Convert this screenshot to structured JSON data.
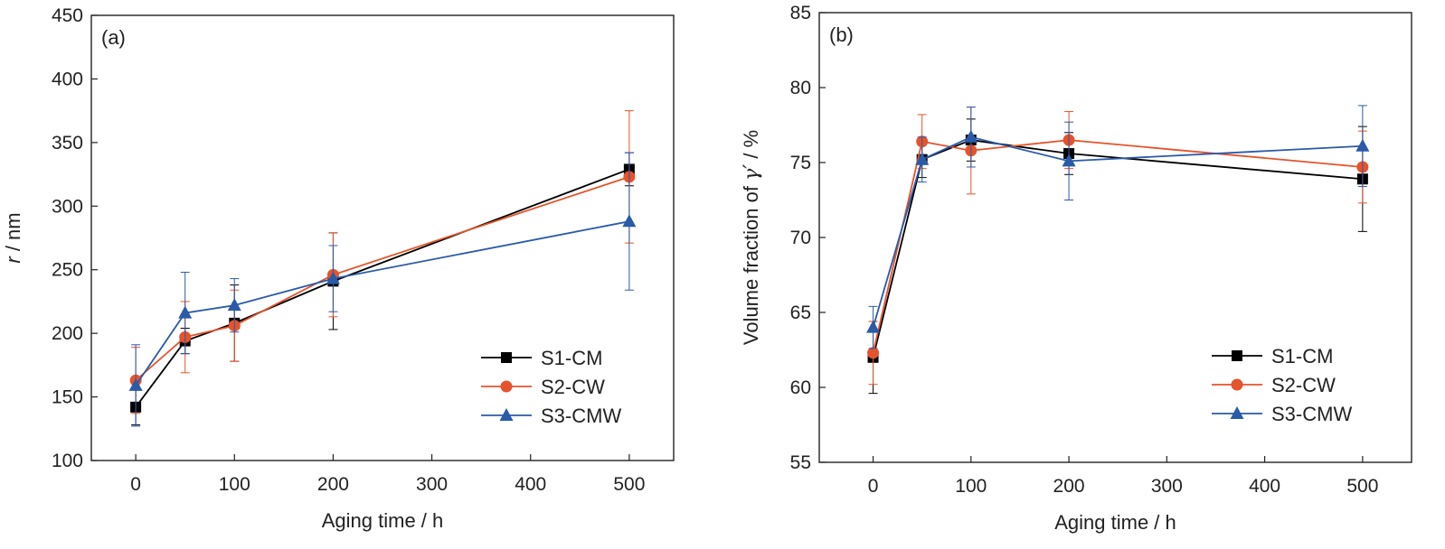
{
  "chart_data": [
    {
      "type": "line",
      "panel_label": "(a)",
      "xlabel": "Aging time / h",
      "ylabel_italic": "r",
      "ylabel_rest": " / nm",
      "xlim": [
        -45,
        545
      ],
      "ylim": [
        100,
        450
      ],
      "xticks": [
        0,
        100,
        200,
        300,
        400,
        500
      ],
      "yticks": [
        100,
        150,
        200,
        250,
        300,
        350,
        400,
        450
      ],
      "x": [
        0,
        50,
        100,
        200,
        500
      ],
      "legend_position": "bottom-right",
      "series": [
        {
          "name": "S1-CM",
          "color": "#000000",
          "marker": "square",
          "values": [
            142,
            194,
            208,
            241,
            329
          ],
          "errors": [
            14,
            10,
            30,
            38,
            13
          ]
        },
        {
          "name": "S2-CW",
          "color": "#e5532c",
          "marker": "circle",
          "values": [
            163,
            197,
            206,
            246,
            323
          ],
          "errors": [
            26,
            28,
            28,
            33,
            52
          ]
        },
        {
          "name": "S3-CMW",
          "color": "#2a5aa8",
          "marker": "triangle",
          "values": [
            159,
            216,
            222,
            243,
            288
          ],
          "errors": [
            32,
            32,
            21,
            26,
            54
          ]
        }
      ]
    },
    {
      "type": "line",
      "panel_label": "(b)",
      "xlabel": "Aging time / h",
      "ylabel_prefix": "Volume fraction of ",
      "ylabel_symbol": "γ′",
      "ylabel_suffix": " / %",
      "xlim": [
        -55,
        550
      ],
      "ylim": [
        55,
        85
      ],
      "xticks": [
        0,
        100,
        200,
        300,
        400,
        500
      ],
      "yticks": [
        55,
        60,
        65,
        70,
        75,
        80,
        85
      ],
      "x": [
        0,
        50,
        100,
        200,
        500
      ],
      "legend_position": "bottom-right",
      "series": [
        {
          "name": "S1-CM",
          "color": "#000000",
          "marker": "square",
          "values": [
            62.0,
            75.2,
            76.5,
            75.6,
            73.9
          ],
          "errors": [
            2.4,
            1.2,
            1.4,
            1.4,
            3.5
          ]
        },
        {
          "name": "S2-CW",
          "color": "#e5532c",
          "marker": "circle",
          "values": [
            62.3,
            76.4,
            75.8,
            76.5,
            74.7
          ],
          "errors": [
            2.1,
            1.8,
            2.9,
            1.9,
            2.4
          ]
        },
        {
          "name": "S3-CMW",
          "color": "#2a5aa8",
          "marker": "triangle",
          "values": [
            64.0,
            75.2,
            76.7,
            75.1,
            76.1
          ],
          "errors": [
            1.4,
            1.5,
            2.0,
            2.6,
            2.7
          ]
        }
      ]
    }
  ]
}
